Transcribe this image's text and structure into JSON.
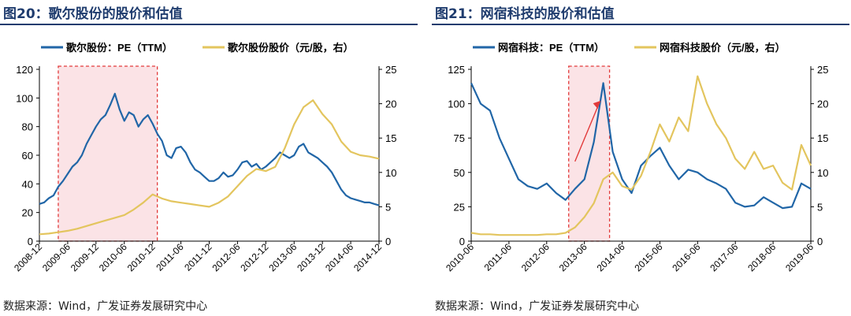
{
  "figures": [
    {
      "title": "图20：歌尔股份的股价和估值",
      "source": "数据来源：Wind，广发证券发展研究中心"
    },
    {
      "title": "图21：网宿科技的股价和估值",
      "source": "数据来源：Wind，广发证券发展研究中心"
    }
  ],
  "chart_data": [
    {
      "type": "line",
      "legend_position": "top-left",
      "grid": false,
      "x_ticks": [
        "2008-12",
        "2009-06",
        "2009-12",
        "2010-06",
        "2010-12",
        "2011-06",
        "2011-12",
        "2012-06",
        "2012-12",
        "2013-06",
        "2013-12",
        "2014-06",
        "2014-12"
      ],
      "xlim": [
        "2008-12",
        "2014-12"
      ],
      "ylim_left": [
        0,
        120
      ],
      "y_ticks_left": [
        0,
        20,
        40,
        60,
        80,
        100,
        120
      ],
      "ylim_right": [
        0,
        25
      ],
      "y_ticks_right": [
        0,
        5,
        10,
        15,
        20,
        25
      ],
      "highlight": {
        "from": "2009-04",
        "to": "2011-01"
      },
      "series": [
        {
          "name": "歌尔股份：PE（TTM）",
          "axis": "left",
          "color": "#2166a7",
          "x": [
            "2008-12",
            "2009-01",
            "2009-02",
            "2009-03",
            "2009-04",
            "2009-05",
            "2009-06",
            "2009-07",
            "2009-08",
            "2009-09",
            "2009-10",
            "2009-11",
            "2009-12",
            "2010-01",
            "2010-02",
            "2010-03",
            "2010-04",
            "2010-05",
            "2010-06",
            "2010-07",
            "2010-08",
            "2010-09",
            "2010-10",
            "2010-11",
            "2010-12",
            "2011-01",
            "2011-02",
            "2011-03",
            "2011-04",
            "2011-05",
            "2011-06",
            "2011-07",
            "2011-08",
            "2011-09",
            "2011-10",
            "2011-11",
            "2011-12",
            "2012-01",
            "2012-02",
            "2012-03",
            "2012-04",
            "2012-05",
            "2012-06",
            "2012-07",
            "2012-08",
            "2012-09",
            "2012-10",
            "2012-11",
            "2012-12",
            "2013-01",
            "2013-02",
            "2013-03",
            "2013-04",
            "2013-05",
            "2013-06",
            "2013-07",
            "2013-08",
            "2013-09",
            "2013-10",
            "2013-11",
            "2013-12",
            "2014-01",
            "2014-02",
            "2014-03",
            "2014-04",
            "2014-05",
            "2014-06",
            "2014-07",
            "2014-08",
            "2014-09",
            "2014-10",
            "2014-11",
            "2014-12"
          ],
          "values": [
            26,
            27,
            30,
            32,
            38,
            42,
            47,
            52,
            55,
            60,
            68,
            74,
            80,
            85,
            88,
            95,
            103,
            92,
            84,
            90,
            88,
            80,
            85,
            88,
            82,
            75,
            70,
            60,
            58,
            65,
            66,
            62,
            55,
            50,
            48,
            45,
            42,
            42,
            44,
            48,
            45,
            46,
            50,
            55,
            56,
            52,
            54,
            50,
            52,
            55,
            58,
            62,
            60,
            58,
            60,
            66,
            68,
            62,
            60,
            58,
            55,
            52,
            48,
            42,
            36,
            32,
            30,
            29,
            28,
            27,
            27,
            26,
            25
          ]
        },
        {
          "name": "歌尔股份股价（元/股，右）",
          "axis": "right",
          "color": "#e3c55e",
          "x": [
            "2008-12",
            "2009-02",
            "2009-04",
            "2009-06",
            "2009-08",
            "2009-10",
            "2009-12",
            "2010-02",
            "2010-04",
            "2010-06",
            "2010-08",
            "2010-10",
            "2010-12",
            "2011-02",
            "2011-04",
            "2011-06",
            "2011-08",
            "2011-10",
            "2011-12",
            "2012-02",
            "2012-04",
            "2012-06",
            "2012-08",
            "2012-10",
            "2012-12",
            "2013-02",
            "2013-04",
            "2013-06",
            "2013-08",
            "2013-10",
            "2013-12",
            "2014-02",
            "2014-04",
            "2014-06",
            "2014-08",
            "2014-10",
            "2014-12"
          ],
          "values": [
            1.0,
            1.1,
            1.3,
            1.5,
            1.8,
            2.2,
            2.6,
            3.0,
            3.4,
            3.8,
            4.6,
            5.6,
            6.8,
            6.2,
            5.8,
            5.6,
            5.4,
            5.2,
            5.0,
            5.6,
            6.5,
            8.0,
            9.5,
            10.5,
            10.2,
            10.8,
            13.5,
            17.0,
            19.5,
            20.5,
            18.5,
            17.0,
            14.5,
            13.0,
            12.5,
            12.3,
            12.0
          ]
        }
      ]
    },
    {
      "type": "line",
      "legend_position": "top-left",
      "grid": false,
      "x_ticks": [
        "2010-06",
        "2011-06",
        "2012-06",
        "2013-06",
        "2014-06",
        "2015-06",
        "2016-06",
        "2017-06",
        "2018-06",
        "2019-06"
      ],
      "xlim": [
        "2010-06",
        "2019-06"
      ],
      "ylim_left": [
        0,
        125
      ],
      "y_ticks_left": [
        0,
        25,
        50,
        75,
        100,
        125
      ],
      "ylim_right": [
        0,
        25
      ],
      "y_ticks_right": [
        0,
        5,
        10,
        15,
        20,
        25
      ],
      "highlight": {
        "from": "2013-01",
        "to": "2014-02"
      },
      "series": [
        {
          "name": "网宿科技：PE（TTM）",
          "axis": "left",
          "color": "#2166a7",
          "x": [
            "2010-06",
            "2010-09",
            "2010-12",
            "2011-03",
            "2011-06",
            "2011-09",
            "2011-12",
            "2012-03",
            "2012-06",
            "2012-09",
            "2012-12",
            "2013-03",
            "2013-06",
            "2013-09",
            "2013-12",
            "2014-03",
            "2014-06",
            "2014-09",
            "2014-12",
            "2015-03",
            "2015-06",
            "2015-09",
            "2015-12",
            "2016-03",
            "2016-06",
            "2016-09",
            "2016-12",
            "2017-03",
            "2017-06",
            "2017-09",
            "2017-12",
            "2018-03",
            "2018-06",
            "2018-09",
            "2018-12",
            "2019-03",
            "2019-06"
          ],
          "values": [
            115,
            100,
            95,
            75,
            60,
            45,
            40,
            38,
            42,
            35,
            30,
            38,
            45,
            72,
            115,
            65,
            45,
            35,
            55,
            62,
            68,
            55,
            45,
            52,
            50,
            45,
            42,
            38,
            28,
            25,
            26,
            32,
            28,
            24,
            25,
            42,
            38
          ]
        },
        {
          "name": "网宿科技股价（元/股，右）",
          "axis": "right",
          "color": "#e3c55e",
          "x": [
            "2010-06",
            "2010-09",
            "2010-12",
            "2011-03",
            "2011-06",
            "2011-09",
            "2011-12",
            "2012-03",
            "2012-06",
            "2012-09",
            "2012-12",
            "2013-03",
            "2013-06",
            "2013-09",
            "2013-12",
            "2014-03",
            "2014-06",
            "2014-09",
            "2014-12",
            "2015-03",
            "2015-06",
            "2015-09",
            "2015-12",
            "2016-03",
            "2016-06",
            "2016-09",
            "2016-12",
            "2017-03",
            "2017-06",
            "2017-09",
            "2017-12",
            "2018-03",
            "2018-06",
            "2018-09",
            "2018-12",
            "2019-03",
            "2019-06"
          ],
          "values": [
            1.2,
            1.0,
            1.0,
            0.9,
            0.9,
            0.9,
            0.9,
            0.9,
            1.0,
            1.0,
            1.2,
            2.0,
            3.5,
            5.5,
            9.0,
            10.0,
            8.0,
            7.5,
            9.5,
            13.0,
            17.0,
            14.5,
            18.0,
            16.0,
            24.0,
            20.0,
            17.0,
            15.0,
            12.0,
            10.5,
            13.0,
            10.5,
            11.0,
            8.5,
            7.5,
            14.0,
            11.0
          ]
        }
      ]
    }
  ]
}
